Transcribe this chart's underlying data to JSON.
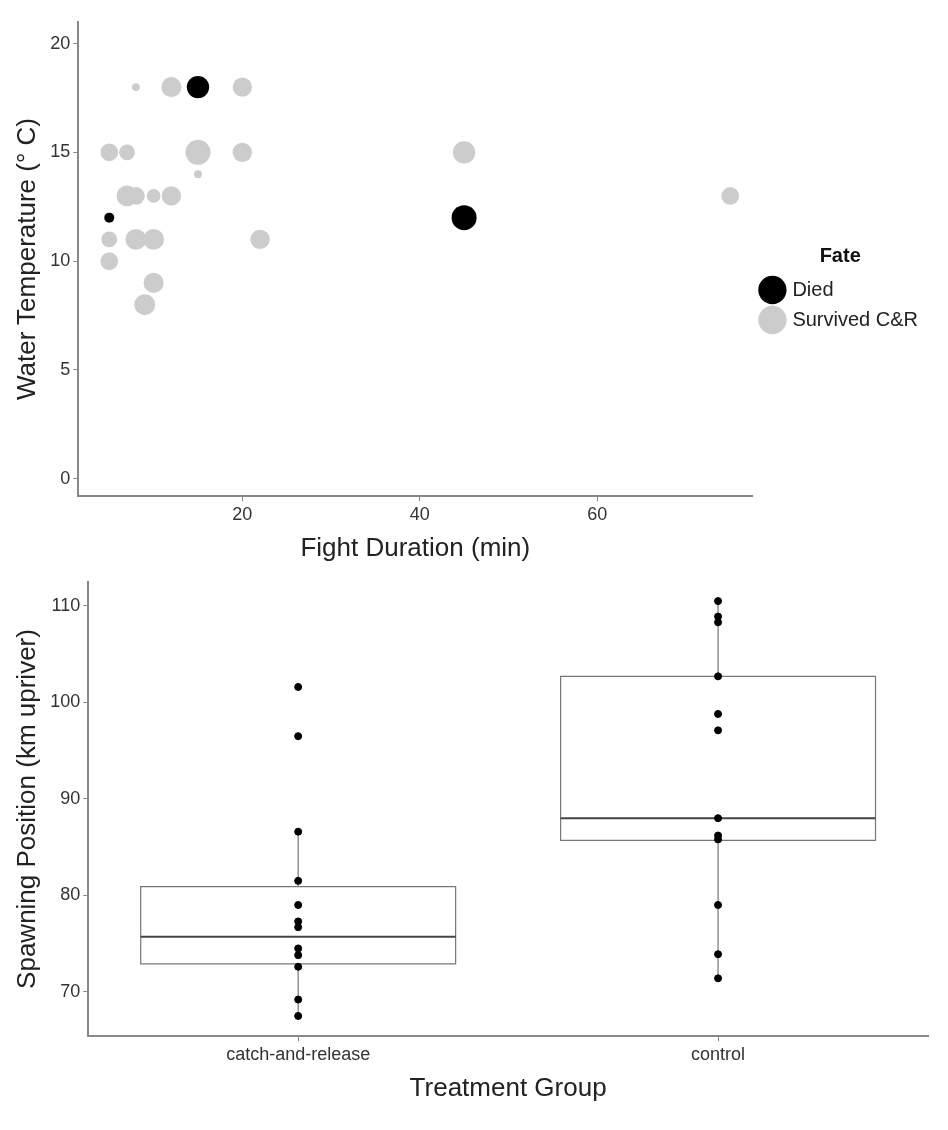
{
  "chart_data": [
    {
      "type": "bubble",
      "xlabel": "Fight Duration (min)",
      "ylabel": "Water Temperature (° C)",
      "legend_title": "Fate",
      "legend": "right",
      "xlim": [
        1.5,
        77.5
      ],
      "xticks": [
        20,
        40,
        60
      ],
      "ylim": [
        -0.8,
        21
      ],
      "yticks": [
        0,
        5,
        10,
        15,
        20
      ],
      "series": [
        {
          "name": "Died",
          "color": "#000000",
          "x": [
            5,
            15,
            45
          ],
          "values": [
            12,
            18,
            12
          ],
          "sizes": [
            0.16,
            0.8,
            1
          ]
        },
        {
          "name": "Survived C&R",
          "color": "#cccccc",
          "x": [
            5,
            5,
            5,
            7,
            7,
            8,
            8,
            10,
            10,
            10,
            9,
            12,
            12,
            8,
            15,
            15,
            20,
            20,
            22,
            45,
            75
          ],
          "values": [
            15,
            11,
            10,
            15,
            13,
            13,
            11,
            13,
            11,
            9,
            8,
            13,
            18,
            18,
            15,
            14,
            18,
            15,
            11,
            15,
            13
          ],
          "sizes": [
            0.5,
            0.4,
            0.5,
            0.4,
            0.7,
            0.5,
            0.7,
            0.3,
            0.7,
            0.65,
            0.7,
            0.6,
            0.65,
            0.1,
            1,
            0.1,
            0.6,
            0.6,
            0.6,
            0.8,
            0.5
          ]
        }
      ]
    },
    {
      "type": "box",
      "xlabel": "Treatment Group",
      "ylabel": "Spawning Position (km upriver)",
      "categories": [
        "catch-and-release",
        "control"
      ],
      "ylim": [
        65.4,
        112.5
      ],
      "yticks": [
        70,
        80,
        90,
        100,
        110
      ],
      "boxes": [
        {
          "low": 67.5,
          "q1": 72.9,
          "median": 75.7,
          "q3": 80.9,
          "high": 86.6
        },
        {
          "low": 71.4,
          "q1": 85.7,
          "median": 88.0,
          "q3": 102.7,
          "high": 110.5
        }
      ],
      "series": [
        {
          "type": "scatter",
          "color": "#000000",
          "x": [
            "catch-and-release",
            "catch-and-release",
            "catch-and-release",
            "catch-and-release",
            "catch-and-release",
            "catch-and-release",
            "catch-and-release",
            "catch-and-release",
            "catch-and-release",
            "catch-and-release",
            "catch-and-release",
            "catch-and-release",
            "control",
            "control",
            "control",
            "control",
            "control",
            "control",
            "control",
            "control",
            "control",
            "control",
            "control",
            "control"
          ],
          "values": [
            101.6,
            96.5,
            86.6,
            81.5,
            79.0,
            77.3,
            76.7,
            74.5,
            73.8,
            72.6,
            69.2,
            67.5,
            110.5,
            108.9,
            108.3,
            102.7,
            98.8,
            97.1,
            88.0,
            86.2,
            85.8,
            79.0,
            73.9,
            71.4
          ]
        }
      ]
    }
  ]
}
